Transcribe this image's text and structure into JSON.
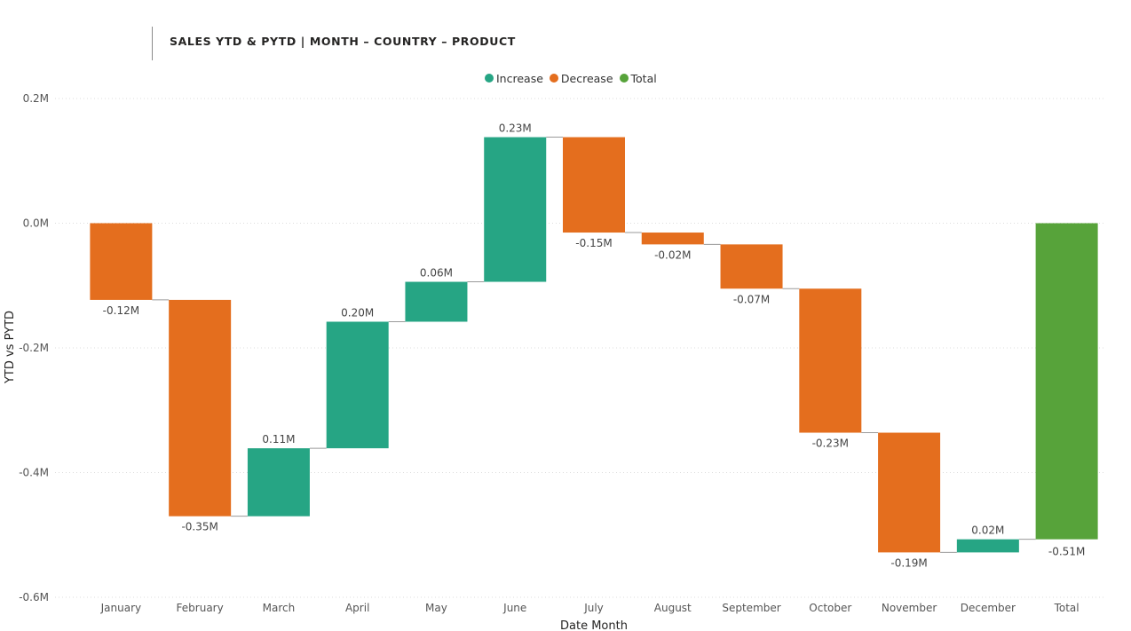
{
  "title": "SALES YTD & PYTD | MONTH – COUNTRY – PRODUCT",
  "legend": [
    {
      "label": "Increase",
      "color": "#26a584"
    },
    {
      "label": "Decrease",
      "color": "#e46e1e"
    },
    {
      "label": "Total",
      "color": "#57a33a"
    }
  ],
  "chart_data": {
    "type": "waterfall",
    "xlabel": "Date Month",
    "ylabel": "YTD vs PYTD",
    "ylim": [
      -0.6,
      0.2
    ],
    "yticks": [
      0.2,
      0.0,
      -0.2,
      -0.4,
      -0.6
    ],
    "ytick_labels": [
      "0.2M",
      "0.0M",
      "-0.2M",
      "-0.4M",
      "-0.6M"
    ],
    "grid": true,
    "legend_position": "top-center",
    "categories": [
      "January",
      "February",
      "March",
      "April",
      "May",
      "June",
      "July",
      "August",
      "September",
      "October",
      "November",
      "December",
      "Total"
    ],
    "values": [
      -0.123,
      -0.347,
      0.109,
      0.203,
      0.064,
      0.232,
      -0.153,
      -0.019,
      -0.071,
      -0.231,
      -0.192,
      0.021,
      -0.507
    ],
    "labels": [
      "-0.12M",
      "-0.35M",
      "0.11M",
      "0.20M",
      "0.06M",
      "0.23M",
      "-0.15M",
      "-0.02M",
      "-0.07M",
      "-0.23M",
      "-0.19M",
      "0.02M",
      "-0.51M"
    ],
    "kinds": [
      "decrease",
      "decrease",
      "increase",
      "increase",
      "increase",
      "increase",
      "decrease",
      "decrease",
      "decrease",
      "decrease",
      "decrease",
      "increase",
      "total"
    ],
    "colors": {
      "increase": "#26a584",
      "decrease": "#e46e1e",
      "total": "#57a33a"
    }
  }
}
